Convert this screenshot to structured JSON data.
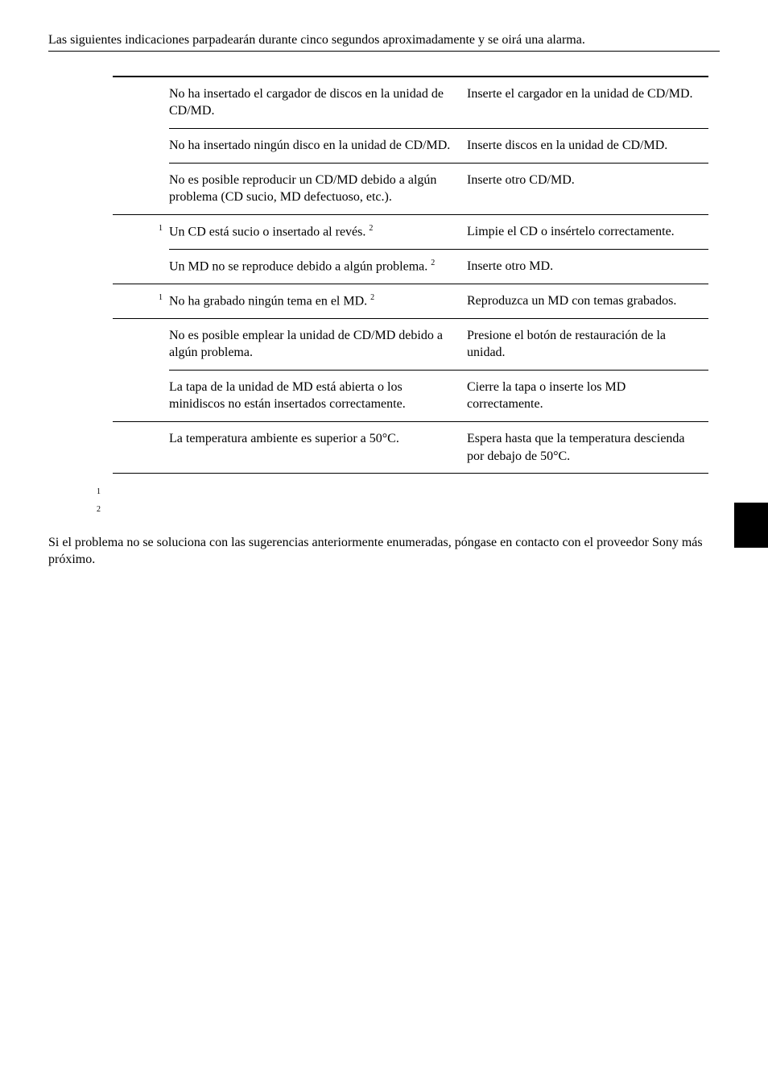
{
  "intro": "Las siguientes indicaciones parpadearán durante cinco segundos aproximadamente y se oirá una alarma.",
  "rows": [
    {
      "label": "",
      "cause": "No ha insertado el cargador de discos en la unidad de CD/MD.",
      "solution": "Inserte el cargador en la unidad de CD/MD."
    },
    {
      "label": "",
      "cause": "No ha insertado ningún disco en la unidad de CD/MD.",
      "solution": "Inserte discos en la unidad de CD/MD."
    },
    {
      "label": "",
      "cause": "No es posible reproducir un CD/MD debido a algún problema (CD sucio, MD defectuoso, etc.).",
      "solution": "Inserte otro CD/MD."
    },
    {
      "label": "1",
      "cause_prefix": "Un CD está sucio o insertado al revés. ",
      "cause_sup": "2",
      "solution": "Limpie el CD o insértelo correctamente."
    },
    {
      "label": "",
      "cause_prefix": "Un MD no se reproduce debido a algún problema. ",
      "cause_sup": "2",
      "solution": "Inserte otro MD."
    },
    {
      "label": "1",
      "cause_prefix": "No ha grabado ningún tema en el MD. ",
      "cause_sup": "2",
      "solution": "Reproduzca un MD con temas grabados."
    },
    {
      "label": "",
      "cause": "No es posible emplear la unidad de CD/MD debido a algún problema.",
      "solution": "Presione el botón de restauración de la unidad."
    },
    {
      "label": "",
      "cause": "La tapa de la unidad de MD está abierta o los minidiscos no están insertados correctamente.",
      "solution": "Cierre la tapa o inserte los MD correctamente."
    },
    {
      "label": "",
      "cause": "La temperatura ambiente es superior a 50°C.",
      "solution": "Espera hasta que la temperatura descienda por debajo de 50°C."
    }
  ],
  "footnotes": {
    "a": "1",
    "b": "2"
  },
  "closing": "Si el problema no se soluciona con las sugerencias anteriormente enumeradas, póngase en contacto con el proveedor Sony más próximo.",
  "colors": {
    "text": "#000000",
    "bg": "#ffffff",
    "tab": "#000000"
  }
}
